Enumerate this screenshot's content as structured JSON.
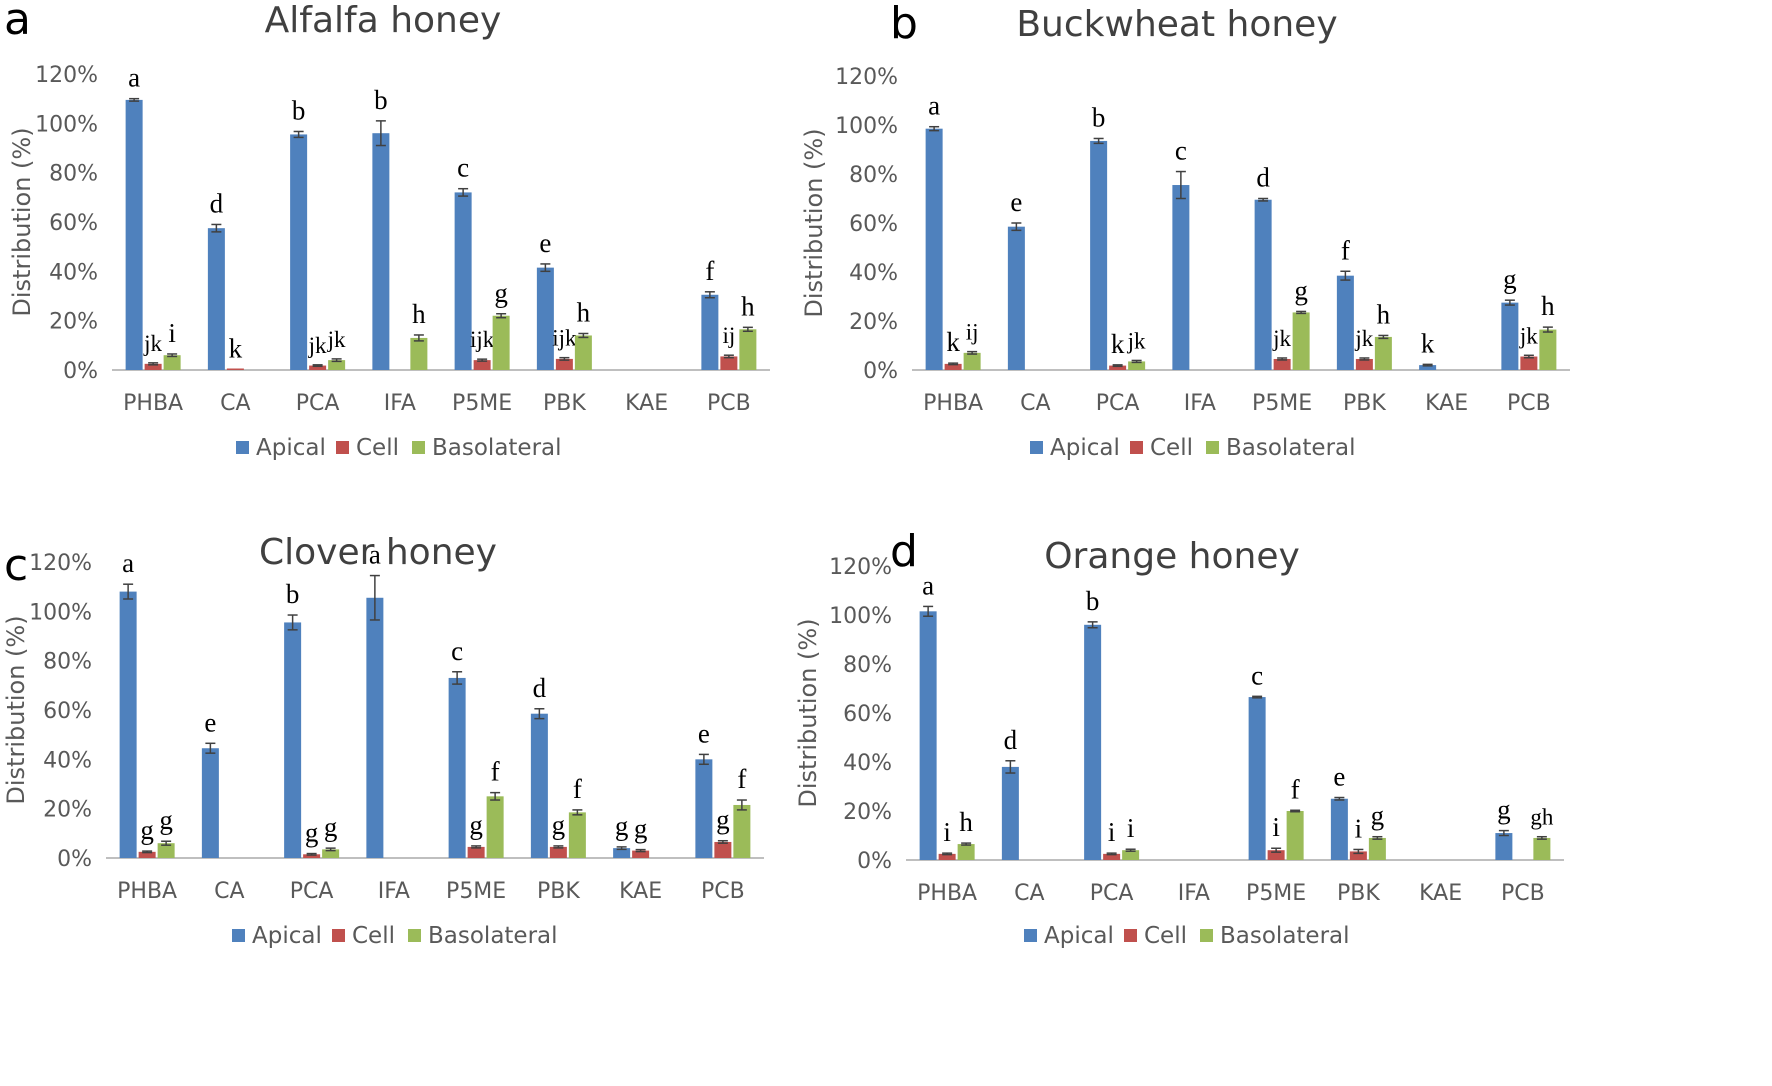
{
  "legend": {
    "apical": "Apical",
    "cell": "Cell",
    "basolateral": "Basolateral"
  },
  "colors": {
    "apical": "#4F81BD",
    "cell": "#C0504D",
    "basolateral": "#9BBB59",
    "axis": "#BFBFBF",
    "error": "#404040"
  },
  "chart_data": [
    {
      "type": "bar",
      "panel": "a",
      "title": "Alfalfa honey",
      "ylabel": "Distribution (%)",
      "ylim": [
        0,
        120
      ],
      "yticks": [
        "0%",
        "20%",
        "40%",
        "60%",
        "80%",
        "100%",
        "120%"
      ],
      "categories": [
        "PHBA",
        "CA",
        "PCA",
        "IFA",
        "P5ME",
        "PBK",
        "KAE",
        "PCB"
      ],
      "series": [
        {
          "name": "Apical",
          "values": [
            109.5,
            57.5,
            95.5,
            96,
            72,
            41.5,
            null,
            30.5
          ],
          "errors": [
            0.5,
            1.5,
            1.2,
            5,
            1.5,
            1.5,
            null,
            1.2
          ],
          "letters": [
            "a",
            "d",
            "b",
            "b",
            "c",
            "e",
            "",
            "f"
          ]
        },
        {
          "name": "Cell",
          "values": [
            2.5,
            0.3,
            1.8,
            null,
            4,
            4.5,
            null,
            5.5
          ],
          "errors": [
            0.4,
            0,
            0.3,
            null,
            0.4,
            0.5,
            null,
            0.5
          ],
          "letters": [
            "jk",
            "k",
            "jk",
            "",
            "ijk",
            "ijk",
            "",
            "ij"
          ]
        },
        {
          "name": "Basolateral",
          "values": [
            6,
            null,
            4,
            13,
            22,
            14,
            null,
            16.5
          ],
          "errors": [
            0.5,
            null,
            0.5,
            1.2,
            0.8,
            0.8,
            null,
            0.8
          ],
          "letters": [
            "i",
            "",
            "jk",
            "h",
            "g",
            "h",
            "",
            "h"
          ]
        }
      ]
    },
    {
      "type": "bar",
      "panel": "b",
      "title": "Buckwheat honey",
      "ylabel": "Distribution (%)",
      "ylim": [
        0,
        120
      ],
      "yticks": [
        "0%",
        "20%",
        "40%",
        "60%",
        "80%",
        "100%",
        "120%"
      ],
      "categories": [
        "PHBA",
        "CA",
        "PCA",
        "IFA",
        "P5ME",
        "PBK",
        "KAE",
        "PCB"
      ],
      "series": [
        {
          "name": "Apical",
          "values": [
            98.5,
            58.5,
            93.5,
            75.5,
            69.5,
            38.5,
            2,
            27.5
          ],
          "errors": [
            0.8,
            1.5,
            1,
            5.5,
            0.5,
            1.8,
            0.3,
            1
          ],
          "letters": [
            "a",
            "e",
            "b",
            "c",
            "d",
            "f",
            "k",
            "g"
          ]
        },
        {
          "name": "Cell",
          "values": [
            2.5,
            null,
            1.8,
            null,
            4.5,
            4.5,
            null,
            5.5
          ],
          "errors": [
            0.3,
            null,
            0.3,
            null,
            0.4,
            0.4,
            null,
            0.5
          ],
          "letters": [
            "k",
            "",
            "k",
            "",
            "jk",
            "jk",
            "",
            "jk"
          ]
        },
        {
          "name": "Basolateral",
          "values": [
            7,
            null,
            3.5,
            null,
            23.5,
            13.5,
            null,
            16.5
          ],
          "errors": [
            0.5,
            null,
            0.4,
            null,
            0.4,
            0.6,
            null,
            1
          ],
          "letters": [
            "ij",
            "",
            "jk",
            "",
            "g",
            "h",
            "",
            "h"
          ]
        }
      ]
    },
    {
      "type": "bar",
      "panel": "c",
      "title": "Clover honey",
      "ylabel": "Distribution (%)",
      "ylim": [
        0,
        120
      ],
      "yticks": [
        "0%",
        "20%",
        "40%",
        "60%",
        "80%",
        "100%",
        "120%"
      ],
      "categories": [
        "PHBA",
        "CA",
        "PCA",
        "IFA",
        "P5ME",
        "PBK",
        "KAE",
        "PCB"
      ],
      "series": [
        {
          "name": "Apical",
          "values": [
            108,
            44.5,
            95.5,
            105.5,
            73,
            58.5,
            4,
            40
          ],
          "errors": [
            3,
            2,
            3,
            9,
            2.5,
            2,
            0.5,
            2
          ],
          "letters": [
            "a",
            "e",
            "b",
            "a",
            "c",
            "d",
            "g",
            "e"
          ]
        },
        {
          "name": "Cell",
          "values": [
            2.5,
            null,
            1.5,
            null,
            4.5,
            4.5,
            3,
            6.5
          ],
          "errors": [
            0.3,
            null,
            0.3,
            null,
            0.4,
            0.4,
            0.4,
            0.5
          ],
          "letters": [
            "g",
            "",
            "g",
            "",
            "g",
            "g",
            "g",
            "g"
          ]
        },
        {
          "name": "Basolateral",
          "values": [
            6,
            null,
            3.5,
            null,
            25,
            18.5,
            null,
            21.5
          ],
          "errors": [
            0.8,
            null,
            0.5,
            null,
            1.5,
            1,
            null,
            2
          ],
          "letters": [
            "g",
            "",
            "g",
            "",
            "f",
            "f",
            "",
            "f"
          ]
        }
      ]
    },
    {
      "type": "bar",
      "panel": "d",
      "title": "Orange honey",
      "ylabel": "Distribution (%)",
      "ylim": [
        0,
        120
      ],
      "yticks": [
        "0%",
        "20%",
        "40%",
        "60%",
        "80%",
        "100%",
        "120%"
      ],
      "categories": [
        "PHBA",
        "CA",
        "PCA",
        "IFA",
        "P5ME",
        "PBK",
        "KAE",
        "PCB"
      ],
      "series": [
        {
          "name": "Apical",
          "values": [
            101.5,
            38,
            96,
            null,
            66.5,
            25,
            null,
            11
          ],
          "errors": [
            2,
            2.5,
            1.2,
            null,
            0.3,
            0.5,
            null,
            1
          ],
          "letters": [
            "a",
            "d",
            "b",
            "",
            "c",
            "e",
            "",
            "g"
          ]
        },
        {
          "name": "Cell",
          "values": [
            2.5,
            null,
            2.5,
            null,
            4,
            3.5,
            null,
            null
          ],
          "errors": [
            0.3,
            null,
            0.3,
            null,
            0.8,
            0.8,
            null,
            null
          ],
          "letters": [
            "i",
            "",
            "i",
            "",
            "i",
            "i",
            "",
            ""
          ]
        },
        {
          "name": "Basolateral",
          "values": [
            6.5,
            null,
            4,
            null,
            20,
            9,
            null,
            9
          ],
          "errors": [
            0.4,
            null,
            0.4,
            null,
            0.3,
            0.5,
            null,
            0.5
          ],
          "letters": [
            "h",
            "",
            "i",
            "",
            "f",
            "g",
            "",
            "gh"
          ]
        }
      ]
    }
  ]
}
